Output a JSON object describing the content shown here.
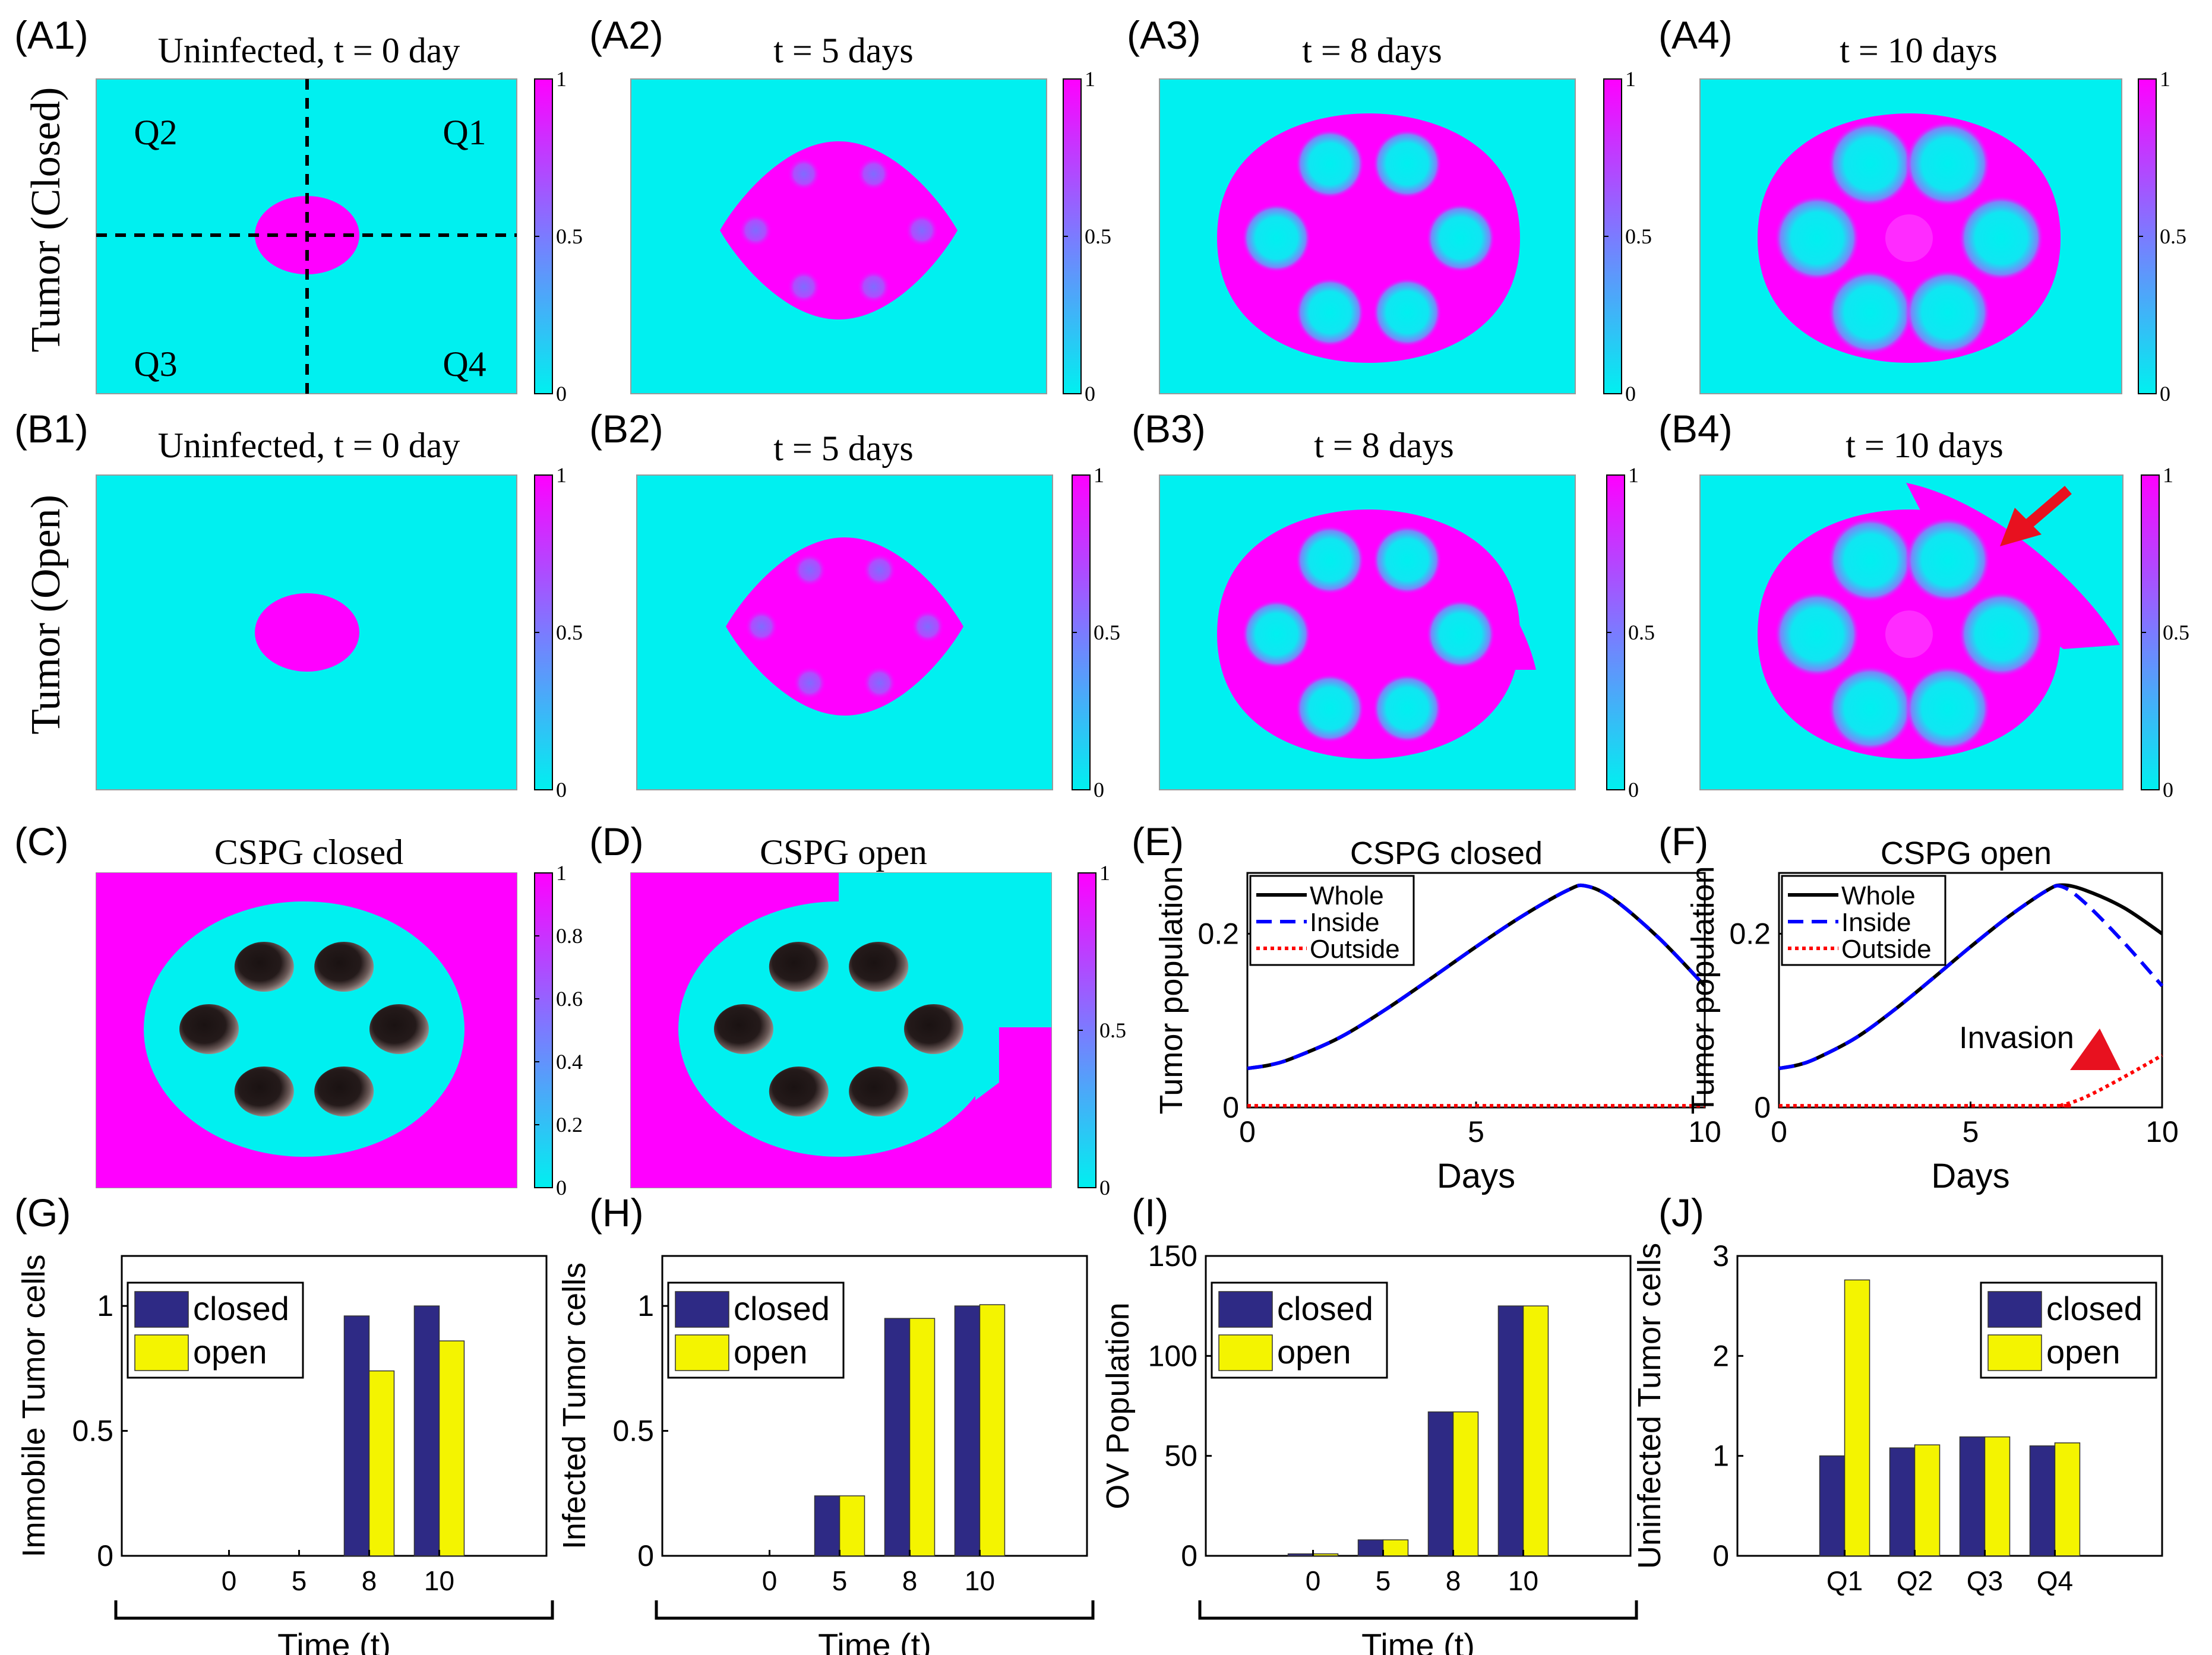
{
  "colors": {
    "cyan": "#00f0f0",
    "magenta": "#ff00ff",
    "dark_blue": "#2e2a85",
    "yellow": "#f4f400",
    "whole": "#000000",
    "inside": "#0000ff",
    "outside": "#ff0000",
    "arrow_red": "#e8111f",
    "cavity": "#1a1212"
  },
  "row_labels": {
    "closed": "Tumor (Closed)",
    "open": "Tumor (Open)"
  },
  "heatmaps": [
    {
      "id": "A1",
      "tag": "(A1)",
      "title": "Uninfected, t = 0 day",
      "quadrants": [
        "Q2",
        "Q1",
        "Q3",
        "Q4"
      ],
      "colorbar_ticks": [
        "1",
        "0.5",
        "0"
      ]
    },
    {
      "id": "A2",
      "tag": "(A2)",
      "title": "t = 5 days",
      "colorbar_ticks": [
        "1",
        "0.5",
        "0"
      ]
    },
    {
      "id": "A3",
      "tag": "(A3)",
      "title": "t = 8 days",
      "colorbar_ticks": [
        "1",
        "0.5",
        "0"
      ]
    },
    {
      "id": "A4",
      "tag": "(A4)",
      "title": "t = 10 days",
      "colorbar_ticks": [
        "1",
        "0.5",
        "0"
      ]
    },
    {
      "id": "B1",
      "tag": "(B1)",
      "title": "Uninfected, t = 0 day",
      "colorbar_ticks": [
        "1",
        "0.5",
        "0"
      ]
    },
    {
      "id": "B2",
      "tag": "(B2)",
      "title": "t = 5 days",
      "colorbar_ticks": [
        "1",
        "0.5",
        "0"
      ]
    },
    {
      "id": "B3",
      "tag": "(B3)",
      "title": "t = 8 days",
      "colorbar_ticks": [
        "1",
        "0.5",
        "0"
      ]
    },
    {
      "id": "B4",
      "tag": "(B4)",
      "title": "t = 10 days",
      "colorbar_ticks": [
        "1",
        "0.5",
        "0"
      ]
    },
    {
      "id": "C",
      "tag": "(C)",
      "title": "CSPG closed",
      "colorbar_ticks": [
        "1",
        "0.8",
        "0.6",
        "0.4",
        "0.2",
        "0"
      ]
    },
    {
      "id": "D",
      "tag": "(D)",
      "title": "CSPG open",
      "colorbar_ticks": [
        "1",
        "0.5",
        "0"
      ]
    }
  ],
  "chart_data": [
    {
      "id": "E",
      "tag": "(E)",
      "type": "line",
      "title": "CSPG closed",
      "xlabel": "Days",
      "ylabel": "Tumor population",
      "xlim": [
        0,
        10
      ],
      "ylim": [
        0,
        0.27
      ],
      "xticks": [
        0,
        5,
        10
      ],
      "yticks": [
        0,
        0.2
      ],
      "legend": "top-left",
      "series": [
        {
          "name": "Whole",
          "x": [
            0,
            0.5,
            1,
            2,
            3,
            4,
            5,
            6,
            7,
            7.4,
            8,
            9,
            10
          ],
          "y": [
            0.045,
            0.049,
            0.057,
            0.08,
            0.112,
            0.148,
            0.185,
            0.22,
            0.25,
            0.255,
            0.24,
            0.195,
            0.14
          ]
        },
        {
          "name": "Inside",
          "x": [
            0,
            0.5,
            1,
            2,
            3,
            4,
            5,
            6,
            7,
            7.4,
            8,
            9,
            10
          ],
          "y": [
            0.045,
            0.049,
            0.057,
            0.08,
            0.112,
            0.148,
            0.185,
            0.22,
            0.25,
            0.255,
            0.24,
            0.195,
            0.14
          ]
        },
        {
          "name": "Outside",
          "x": [
            0,
            10
          ],
          "y": [
            0.002,
            0.002
          ]
        }
      ]
    },
    {
      "id": "F",
      "tag": "(F)",
      "type": "line",
      "title": "CSPG open",
      "xlabel": "Days",
      "ylabel": "Tumor population",
      "xlim": [
        0,
        10
      ],
      "ylim": [
        0,
        0.27
      ],
      "xticks": [
        0,
        5,
        10
      ],
      "yticks": [
        0,
        0.2
      ],
      "legend": "top-left",
      "annotation": "Invasion",
      "series": [
        {
          "name": "Whole",
          "x": [
            0,
            0.5,
            1,
            2,
            3,
            4,
            5,
            6,
            7,
            7.4,
            8,
            9,
            10
          ],
          "y": [
            0.045,
            0.049,
            0.057,
            0.08,
            0.112,
            0.148,
            0.185,
            0.22,
            0.25,
            0.256,
            0.25,
            0.23,
            0.2
          ]
        },
        {
          "name": "Inside",
          "x": [
            0,
            0.5,
            1,
            2,
            3,
            4,
            5,
            6,
            7,
            7.4,
            8,
            9,
            10
          ],
          "y": [
            0.045,
            0.049,
            0.057,
            0.08,
            0.112,
            0.148,
            0.185,
            0.22,
            0.25,
            0.254,
            0.235,
            0.19,
            0.14
          ]
        },
        {
          "name": "Outside",
          "x": [
            0,
            7,
            7.4,
            8,
            9,
            10
          ],
          "y": [
            0.002,
            0.002,
            0.003,
            0.012,
            0.035,
            0.06
          ]
        }
      ]
    },
    {
      "id": "G",
      "tag": "(G)",
      "type": "bar",
      "xlabel": "Time (t)",
      "ylabel": "Immobile Tumor cells",
      "categories": [
        "0",
        "5",
        "8",
        "10"
      ],
      "ylim": [
        0,
        1.2
      ],
      "yticks": [
        0,
        0.5,
        1
      ],
      "legend": "top-left",
      "series": [
        {
          "name": "closed",
          "values": [
            0,
            0,
            0.96,
            1.0
          ]
        },
        {
          "name": "open",
          "values": [
            0,
            0,
            0.74,
            0.86
          ]
        }
      ]
    },
    {
      "id": "H",
      "tag": "(H)",
      "type": "bar",
      "xlabel": "Time (t)",
      "ylabel": "Infected Tumor cells",
      "categories": [
        "0",
        "5",
        "8",
        "10"
      ],
      "ylim": [
        0,
        1.2
      ],
      "yticks": [
        0,
        0.5,
        1
      ],
      "legend": "top-left",
      "series": [
        {
          "name": "closed",
          "values": [
            0,
            0.24,
            0.95,
            1.0
          ]
        },
        {
          "name": "open",
          "values": [
            0,
            0.24,
            0.95,
            1.005
          ]
        }
      ]
    },
    {
      "id": "I",
      "tag": "(I)",
      "type": "bar",
      "xlabel": "Time (t)",
      "ylabel": "OV Population",
      "categories": [
        "0",
        "5",
        "8",
        "10"
      ],
      "ylim": [
        0,
        150
      ],
      "yticks": [
        0,
        50,
        100,
        150
      ],
      "legend": "top-left",
      "series": [
        {
          "name": "closed",
          "values": [
            1,
            8,
            72,
            125
          ]
        },
        {
          "name": "open",
          "values": [
            1,
            8,
            72,
            125
          ]
        }
      ]
    },
    {
      "id": "J",
      "tag": "(J)",
      "type": "bar",
      "ylabel": "Uninfected Tumor cells",
      "categories": [
        "Q1",
        "Q2",
        "Q3",
        "Q4"
      ],
      "ylim": [
        0,
        3
      ],
      "yticks": [
        0,
        1,
        2,
        3
      ],
      "legend": "top-right",
      "series": [
        {
          "name": "closed",
          "values": [
            1.0,
            1.08,
            1.19,
            1.1
          ]
        },
        {
          "name": "open",
          "values": [
            2.76,
            1.11,
            1.19,
            1.13
          ]
        }
      ]
    }
  ]
}
